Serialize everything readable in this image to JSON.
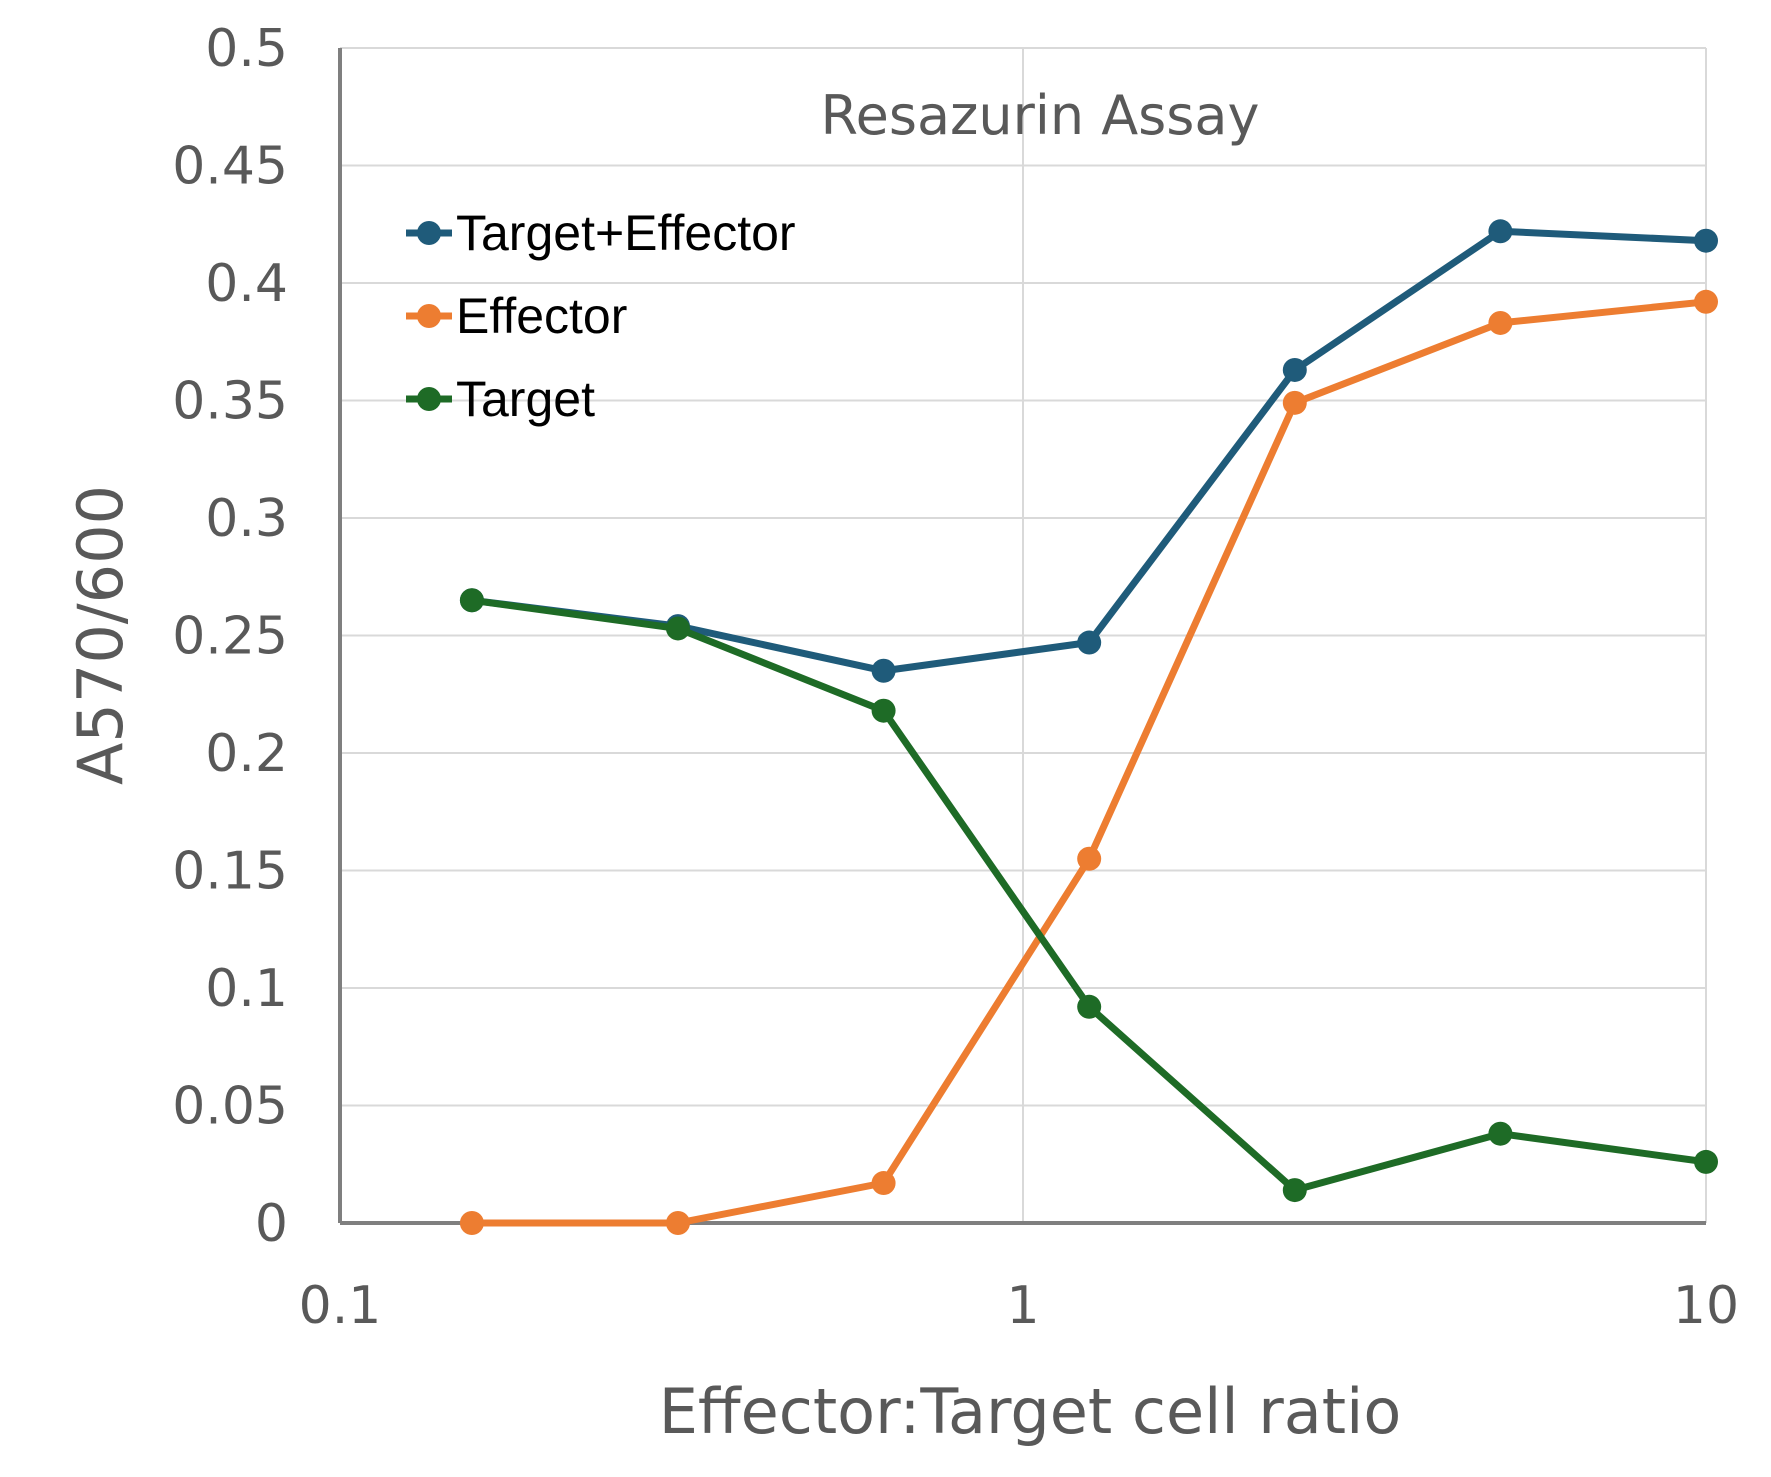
{
  "chart_data": {
    "type": "line",
    "title": "Resazurin Assay",
    "xlabel": "Effector:Target cell ratio",
    "ylabel": "A570/600",
    "x_scale": "log",
    "xlim": [
      0.1,
      10
    ],
    "ylim": [
      0,
      0.5
    ],
    "x_ticks": [
      "0.1",
      "1",
      "10"
    ],
    "y_ticks": [
      "0",
      "0.05",
      "0.1",
      "0.15",
      "0.2",
      "0.25",
      "0.3",
      "0.35",
      "0.4",
      "0.45",
      "0.5"
    ],
    "grid": true,
    "legend": "top-left",
    "x": [
      0.156,
      0.3125,
      0.625,
      1.25,
      2.5,
      5,
      10
    ],
    "series": [
      {
        "name": "Target+Effector",
        "color": "#1f5b7a",
        "values": [
          0.265,
          0.254,
          0.235,
          0.247,
          0.363,
          0.422,
          0.418
        ]
      },
      {
        "name": "Effector",
        "color": "#ed7d31",
        "values": [
          0.0,
          0.0,
          0.017,
          0.155,
          0.349,
          0.383,
          0.392
        ]
      },
      {
        "name": "Target",
        "color": "#1e6b26",
        "values": [
          0.265,
          0.253,
          0.218,
          0.092,
          0.014,
          0.038,
          0.026
        ]
      }
    ]
  }
}
